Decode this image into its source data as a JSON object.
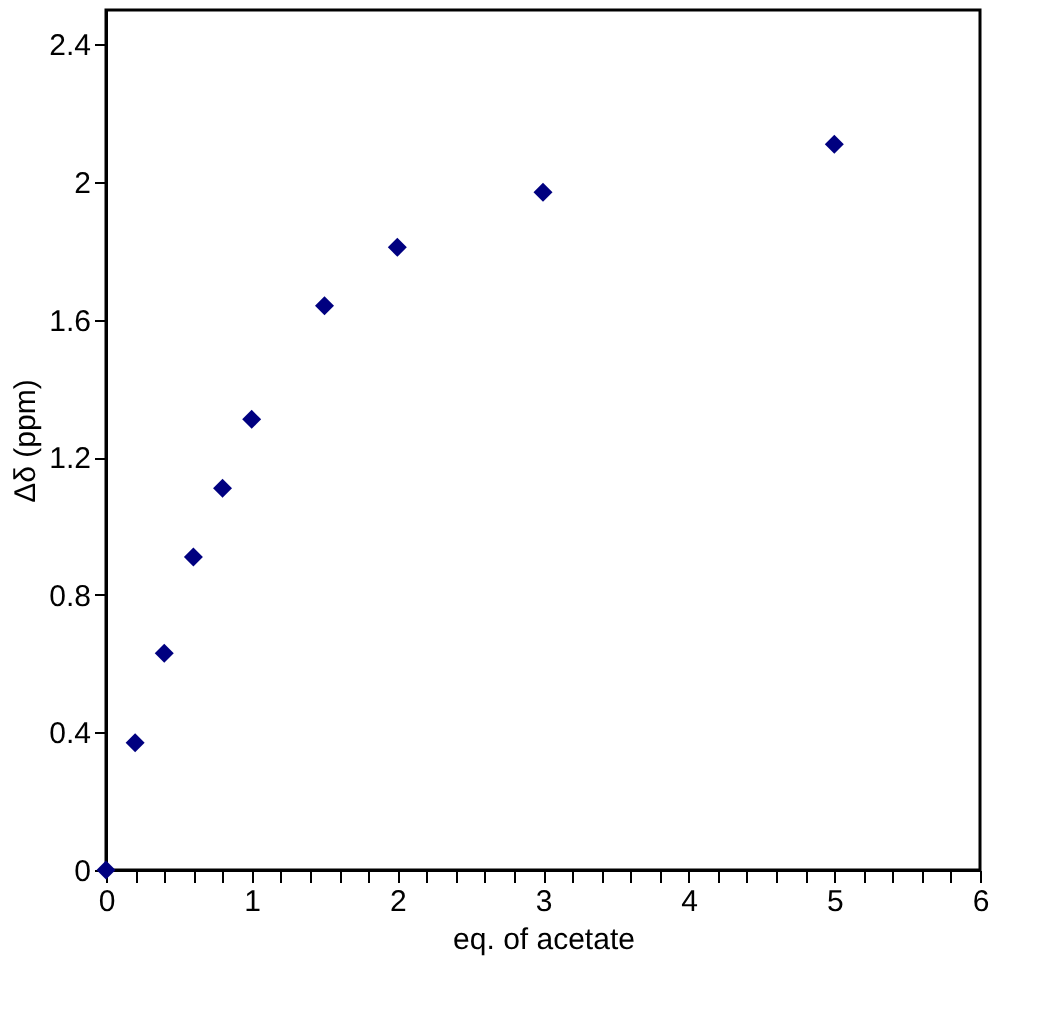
{
  "chart_data": {
    "type": "scatter",
    "xlabel": "eq. of acetate",
    "ylabel": "Δδ (ppm)",
    "x": [
      0,
      0.2,
      0.4,
      0.6,
      0.8,
      1,
      1.5,
      2,
      3,
      5
    ],
    "series": [
      {
        "color": "#000080",
        "values": [
          0,
          0.37,
          0.63,
          0.91,
          1.11,
          1.31,
          1.64,
          1.81,
          1.97,
          2.11
        ]
      }
    ],
    "marker": "diamond",
    "grid": false,
    "xlim": [
      0,
      6
    ],
    "ylim": [
      0,
      2.5
    ],
    "xticks": [
      0,
      {
        "value": 0.2,
        "label": null
      },
      {
        "value": 0.4,
        "label": null
      },
      {
        "value": 0.6,
        "label": null
      },
      {
        "value": 0.8,
        "label": null
      },
      1,
      {
        "value": 1.2,
        "label": null
      },
      {
        "value": 1.4,
        "label": null
      },
      {
        "value": 1.6,
        "label": null
      },
      {
        "value": 1.8,
        "label": null
      },
      2,
      {
        "value": 2.2,
        "label": null
      },
      {
        "value": 2.4,
        "label": null
      },
      {
        "value": 2.6,
        "label": null
      },
      {
        "value": 2.8,
        "label": null
      },
      3,
      {
        "value": 3.2,
        "label": null
      },
      {
        "value": 3.4,
        "label": null
      },
      {
        "value": 3.6,
        "label": null
      },
      {
        "value": 3.8,
        "label": null
      },
      4,
      {
        "value": 4.2,
        "label": null
      },
      {
        "value": 4.4,
        "label": null
      },
      {
        "value": 4.6,
        "label": null
      },
      {
        "value": 4.8,
        "label": null
      },
      5,
      {
        "value": 5.2,
        "label": null
      },
      {
        "value": 5.4,
        "label": null
      },
      {
        "value": 5.6,
        "label": null
      },
      {
        "value": 5.8,
        "label": null
      },
      6
    ],
    "yticks": [
      0,
      0.4,
      0.8,
      1.2,
      1.6,
      2,
      2.4
    ]
  }
}
